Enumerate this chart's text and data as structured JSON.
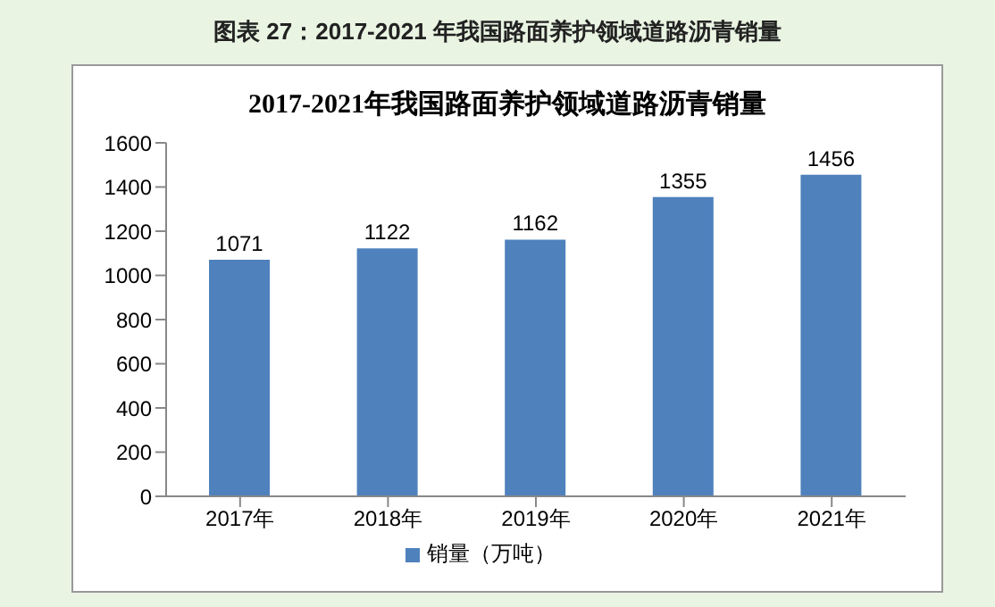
{
  "chart_data": {
    "type": "bar",
    "title": "图表 27：2017-2021 年我国路面养护领域道路沥青销量",
    "subtitle": "2017-2021年我国路面养护领域道路沥青销量",
    "categories": [
      "2017年",
      "2018年",
      "2019年",
      "2020年",
      "2021年"
    ],
    "series": [
      {
        "name": "销量（万吨）",
        "color": "#4f81bd",
        "values": [
          1071,
          1122,
          1162,
          1355,
          1456
        ]
      }
    ],
    "ylim": [
      0,
      1600
    ],
    "yticks": [
      0,
      200,
      400,
      600,
      800,
      1000,
      1200,
      1400,
      1600
    ],
    "data_labels": true,
    "legend": "bottom"
  }
}
